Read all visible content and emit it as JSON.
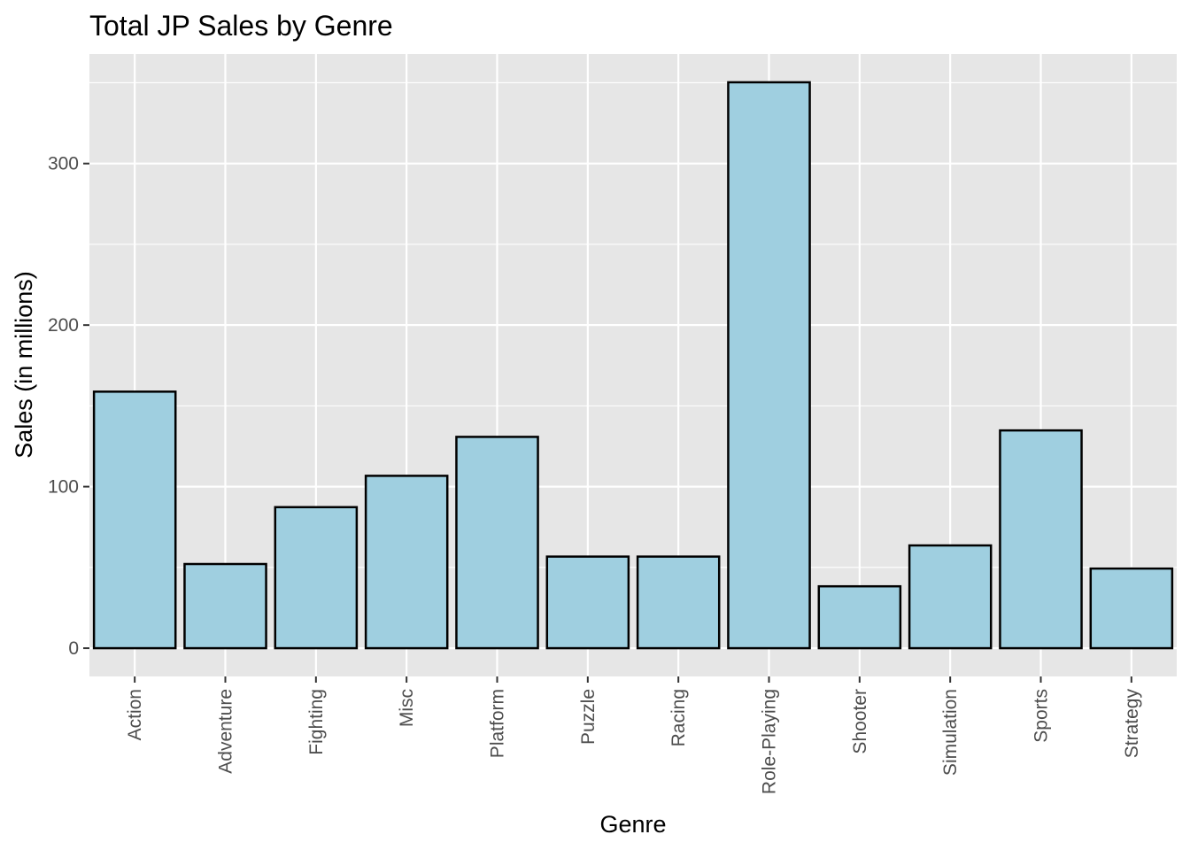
{
  "chart_data": {
    "type": "bar",
    "title": "Total JP Sales by Genre",
    "xlabel": "Genre",
    "ylabel": "Sales (in millions)",
    "categories": [
      "Action",
      "Adventure",
      "Fighting",
      "Misc",
      "Platform",
      "Puzzle",
      "Racing",
      "Role-Playing",
      "Shooter",
      "Simulation",
      "Sports",
      "Strategy"
    ],
    "values": [
      158.8,
      52.1,
      87.3,
      106.7,
      130.8,
      56.7,
      56.7,
      350.3,
      38.3,
      63.6,
      134.8,
      49.3
    ],
    "ylim": [
      -17.5,
      367.8
    ],
    "yticks": [
      0,
      100,
      200,
      300
    ],
    "ytick_labels": [
      "0",
      "100",
      "200",
      "300"
    ],
    "grid": true,
    "legend": "none",
    "colors": {
      "bar_fill": "#9fcfe0",
      "bar_stroke": "#000000",
      "panel": "#e6e6e6",
      "grid": "#ffffff",
      "tick_text": "#4d4d4d"
    }
  }
}
